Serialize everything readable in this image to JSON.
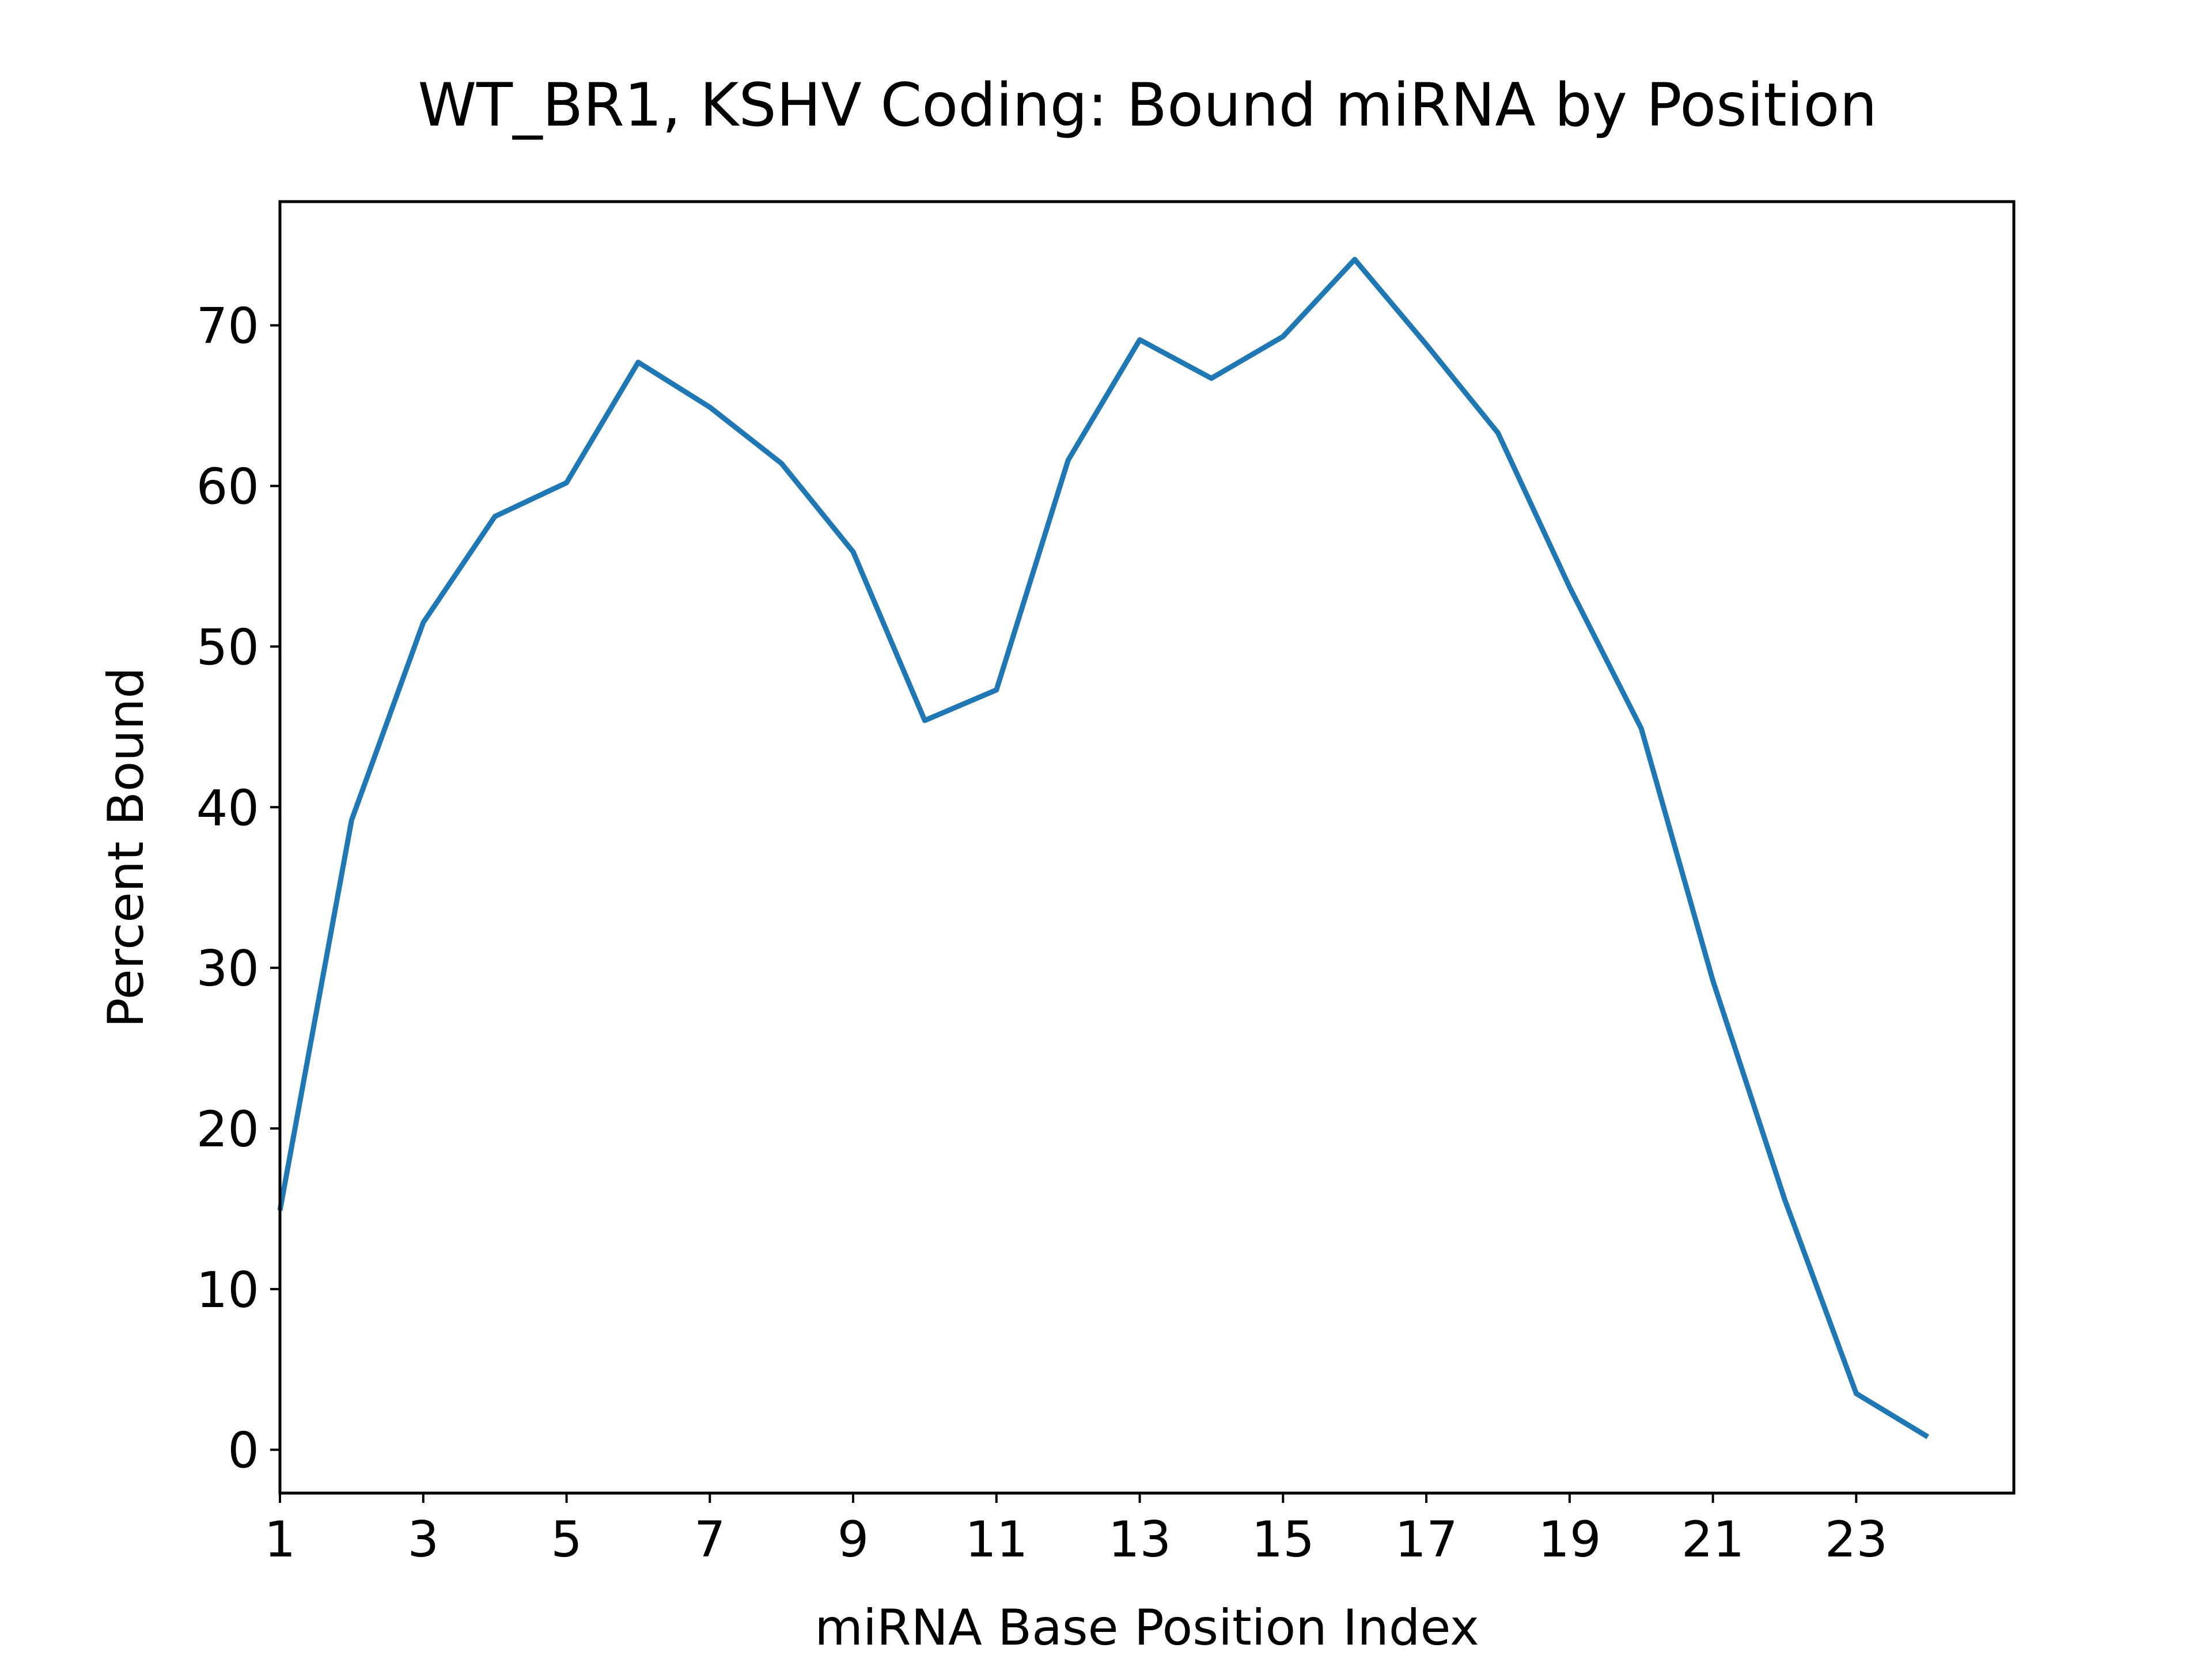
{
  "chart_data": {
    "type": "line",
    "title": "WT_BR1, KSHV Coding: Bound miRNA by Position",
    "xlabel": "miRNA Base Position Index",
    "ylabel": "Percent Bound",
    "xlim": [
      1,
      25.2
    ],
    "ylim": [
      -2.7,
      77.7
    ],
    "x_ticks": [
      1,
      3,
      5,
      7,
      9,
      11,
      13,
      15,
      17,
      19,
      21,
      23
    ],
    "y_ticks": [
      0,
      10,
      20,
      30,
      40,
      50,
      60,
      70
    ],
    "grid": false,
    "legend": "none",
    "series": [
      {
        "color": "#1f77b4",
        "x": [
          1,
          2,
          3,
          4,
          5,
          6,
          7,
          8,
          9,
          10,
          11,
          12,
          13,
          14,
          15,
          16,
          17,
          18,
          19,
          20,
          21,
          22,
          23,
          24
        ],
        "y": [
          14.9,
          39.2,
          51.5,
          58.1,
          60.2,
          67.7,
          64.9,
          61.4,
          55.9,
          45.4,
          47.3,
          61.6,
          69.1,
          66.7,
          69.3,
          74.1,
          68.8,
          63.3,
          53.7,
          44.9,
          29.2,
          15.6,
          3.5,
          0.8
        ]
      }
    ]
  }
}
